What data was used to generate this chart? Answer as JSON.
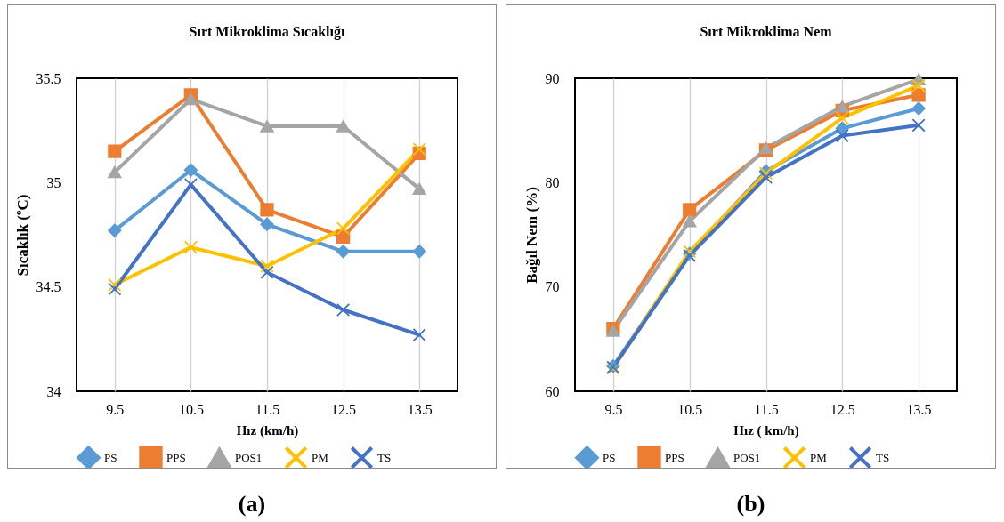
{
  "chart_data": [
    {
      "type": "line",
      "title": "Sırt Mikroklima Sıcaklığı",
      "xlabel": "Hız (km/h)",
      "ylabel": "Sıcaklık (ºC)",
      "categories": [
        "9.5",
        "10.5",
        "11.5",
        "12.5",
        "13.5"
      ],
      "ylim": [
        34,
        35.5
      ],
      "yticks": [
        34,
        34.5,
        35,
        35.5
      ],
      "grid": "x",
      "legend": "bottom",
      "annotations": [
        "(a)"
      ],
      "series": [
        {
          "name": "PS",
          "color": "#5b9bd5",
          "marker": "diamond",
          "values": [
            34.77,
            35.06,
            34.8,
            34.67,
            34.67
          ]
        },
        {
          "name": "PPS",
          "color": "#ed7d31",
          "marker": "square",
          "values": [
            35.15,
            35.42,
            34.87,
            34.74,
            35.14
          ]
        },
        {
          "name": "POS1",
          "color": "#a5a5a5",
          "marker": "triangle",
          "values": [
            35.05,
            35.4,
            35.27,
            35.27,
            34.97
          ]
        },
        {
          "name": "PM",
          "color": "#ffc000",
          "marker": "cross",
          "values": [
            34.51,
            34.69,
            34.6,
            34.78,
            35.16
          ]
        },
        {
          "name": "TS",
          "color": "#4472c4",
          "marker": "cross",
          "values": [
            34.49,
            34.99,
            34.57,
            34.39,
            34.27
          ]
        }
      ]
    },
    {
      "type": "line",
      "title": "Sırt Mikroklima Nem",
      "xlabel": "Hız ( km/h)",
      "ylabel": "Bağıl Nem (%)",
      "categories": [
        "9.5",
        "10.5",
        "11.5",
        "12.5",
        "13.5"
      ],
      "ylim": [
        60,
        90
      ],
      "yticks": [
        60,
        70,
        80,
        90
      ],
      "grid": "x",
      "legend": "bottom",
      "annotations": [
        "(b)"
      ],
      "series": [
        {
          "name": "PS",
          "color": "#5b9bd5",
          "marker": "diamond",
          "values": [
            62.4,
            73.2,
            81.1,
            85.2,
            87.1
          ]
        },
        {
          "name": "PPS",
          "color": "#ed7d31",
          "marker": "square",
          "values": [
            66.0,
            77.4,
            83.1,
            86.9,
            88.4
          ]
        },
        {
          "name": "POS1",
          "color": "#a5a5a5",
          "marker": "triangle",
          "values": [
            65.8,
            76.3,
            83.3,
            87.3,
            89.9
          ]
        },
        {
          "name": "PM",
          "color": "#ffc000",
          "marker": "cross",
          "values": [
            62.2,
            73.4,
            80.9,
            86.2,
            89.3
          ]
        },
        {
          "name": "TS",
          "color": "#4472c4",
          "marker": "cross",
          "values": [
            62.3,
            73.0,
            80.5,
            84.5,
            85.5
          ]
        }
      ]
    }
  ]
}
